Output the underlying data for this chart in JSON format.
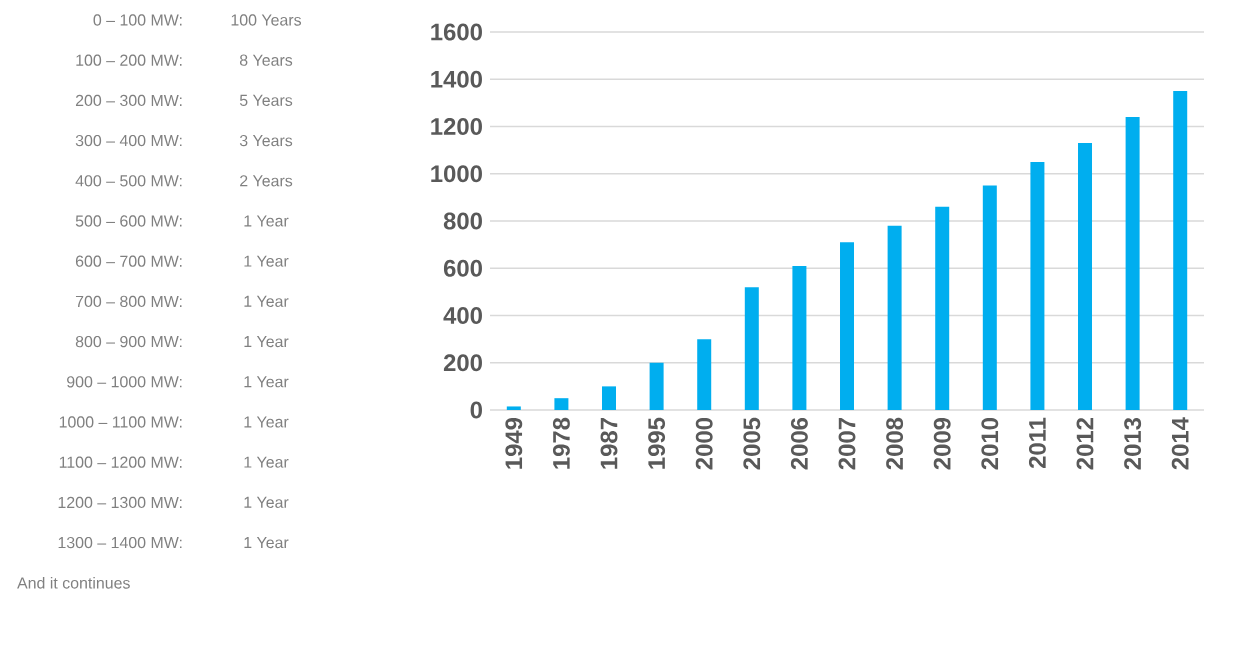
{
  "chart_data": [
    {
      "type": "other",
      "annotations": [
        "0 – 100 MW:",
        "100 Years",
        "100 – 200 MW:",
        "8 Years",
        "200 – 300 MW:",
        "5 Years",
        "300 – 400 MW:",
        "3 Years",
        "400 – 500 MW:",
        "2 Years",
        "500 – 600 MW:",
        "1 Year",
        "600 – 700 MW:",
        "1 Year",
        "700 – 800 MW:",
        "1 Year",
        "800 – 900 MW:",
        "1 Year",
        "900 – 1000 MW:",
        "1 Year",
        "1000 – 1100 MW:",
        "1 Year",
        "1100 – 1200 MW:",
        "1 Year",
        "1200 – 1300 MW:",
        "1 Year",
        "1300 – 1400 MW:",
        "1 Year",
        "And it continues"
      ]
    },
    {
      "type": "bar",
      "categories": [
        "1949",
        "1978",
        "1987",
        "1995",
        "2000",
        "2005",
        "2006",
        "2007",
        "2008",
        "2009",
        "2010",
        "2011",
        "2012",
        "2013",
        "2014"
      ],
      "values": [
        15,
        50,
        100,
        200,
        300,
        520,
        610,
        710,
        780,
        860,
        950,
        1050,
        1130,
        1240,
        1350
      ],
      "color": "#00aeef",
      "ylim": [
        0,
        1600
      ],
      "yticks": [
        0,
        200,
        400,
        600,
        800,
        1000,
        1200,
        1400,
        1600
      ],
      "grid": "y"
    }
  ]
}
